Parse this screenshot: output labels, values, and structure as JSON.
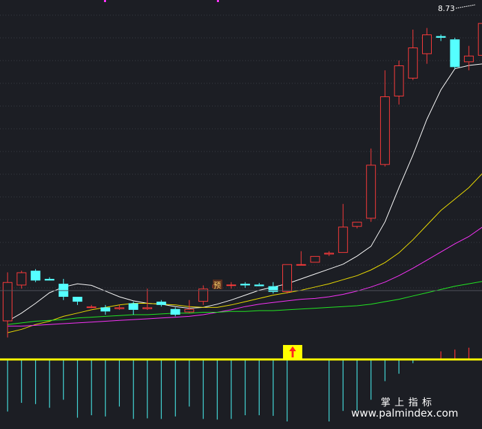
{
  "chart_data": {
    "type": "candlestick",
    "price_label": "8.73",
    "warning_glyph": "预",
    "candles": [
      {
        "o": 5.0,
        "h": 5.6,
        "l": 4.8,
        "c": 5.48
      },
      {
        "o": 5.44,
        "h": 5.62,
        "l": 5.4,
        "c": 5.6
      },
      {
        "o": 5.62,
        "h": 5.64,
        "l": 5.48,
        "c": 5.5
      },
      {
        "o": 5.52,
        "h": 5.54,
        "l": 5.5,
        "c": 5.5
      },
      {
        "o": 5.46,
        "h": 5.52,
        "l": 5.26,
        "c": 5.3
      },
      {
        "o": 5.3,
        "h": 5.3,
        "l": 5.2,
        "c": 5.24
      },
      {
        "o": 5.17,
        "h": 5.2,
        "l": 5.16,
        "c": 5.18
      },
      {
        "o": 5.17,
        "h": 5.2,
        "l": 5.08,
        "c": 5.12
      },
      {
        "o": 5.15,
        "h": 5.2,
        "l": 5.14,
        "c": 5.17
      },
      {
        "o": 5.22,
        "h": 5.24,
        "l": 5.08,
        "c": 5.14
      },
      {
        "o": 5.15,
        "h": 5.4,
        "l": 5.14,
        "c": 5.17
      },
      {
        "o": 5.24,
        "h": 5.26,
        "l": 5.18,
        "c": 5.2
      },
      {
        "o": 5.15,
        "h": 5.17,
        "l": 5.06,
        "c": 5.08
      },
      {
        "o": 5.11,
        "h": 5.26,
        "l": 5.1,
        "c": 5.15
      },
      {
        "o": 5.24,
        "h": 5.44,
        "l": 5.2,
        "c": 5.4
      },
      {
        "o": 5.41,
        "h": 5.46,
        "l": 5.4,
        "c": 5.45
      },
      {
        "o": 5.45,
        "h": 5.48,
        "l": 5.4,
        "c": 5.45
      },
      {
        "o": 5.46,
        "h": 5.48,
        "l": 5.41,
        "c": 5.44
      },
      {
        "o": 5.45,
        "h": 5.47,
        "l": 5.43,
        "c": 5.43
      },
      {
        "o": 5.43,
        "h": 5.48,
        "l": 5.34,
        "c": 5.36
      },
      {
        "o": 5.36,
        "h": 5.7,
        "l": 5.34,
        "c": 5.7
      },
      {
        "o": 5.7,
        "h": 5.86,
        "l": 5.7,
        "c": 5.7
      },
      {
        "o": 5.72,
        "h": 5.8,
        "l": 5.72,
        "c": 5.8
      },
      {
        "o": 5.82,
        "h": 5.86,
        "l": 5.8,
        "c": 5.84
      },
      {
        "o": 5.84,
        "h": 6.44,
        "l": 5.84,
        "c": 6.16
      },
      {
        "o": 6.16,
        "h": 6.22,
        "l": 6.14,
        "c": 6.22
      },
      {
        "o": 6.26,
        "h": 7.12,
        "l": 6.22,
        "c": 6.92
      },
      {
        "o": 6.92,
        "h": 8.08,
        "l": 6.9,
        "c": 7.76
      },
      {
        "o": 7.76,
        "h": 8.2,
        "l": 7.66,
        "c": 8.14
      },
      {
        "o": 7.98,
        "h": 8.58,
        "l": 7.96,
        "c": 8.36
      },
      {
        "o": 8.28,
        "h": 8.6,
        "l": 8.16,
        "c": 8.52
      },
      {
        "o": 8.5,
        "h": 8.52,
        "l": 8.44,
        "c": 8.48
      },
      {
        "o": 8.46,
        "h": 8.48,
        "l": 8.1,
        "c": 8.12
      },
      {
        "o": 8.18,
        "h": 8.38,
        "l": 8.08,
        "c": 8.26
      },
      {
        "o": 8.26,
        "h": 8.73,
        "l": 8.08,
        "c": 8.66
      }
    ],
    "ma_lines": [
      {
        "color": "#ffffff",
        "values": [
          5.0,
          5.1,
          5.22,
          5.35,
          5.42,
          5.46,
          5.44,
          5.37,
          5.3,
          5.25,
          5.22,
          5.21,
          5.18,
          5.16,
          5.17,
          5.21,
          5.26,
          5.32,
          5.38,
          5.42,
          5.46,
          5.52,
          5.58,
          5.64,
          5.7,
          5.8,
          5.92,
          6.22,
          6.64,
          7.04,
          7.48,
          7.84,
          8.1,
          8.14,
          8.16
        ]
      },
      {
        "color": "#f0e000",
        "values": [
          4.86,
          4.9,
          4.96,
          5.0,
          5.06,
          5.1,
          5.14,
          5.17,
          5.2,
          5.22,
          5.22,
          5.21,
          5.2,
          5.18,
          5.17,
          5.17,
          5.2,
          5.24,
          5.28,
          5.32,
          5.35,
          5.38,
          5.42,
          5.46,
          5.51,
          5.56,
          5.63,
          5.72,
          5.84,
          6.0,
          6.18,
          6.36,
          6.5,
          6.64,
          6.82
        ]
      },
      {
        "color": "#ff33ff",
        "values": [
          4.94,
          4.94,
          4.95,
          4.96,
          4.97,
          4.98,
          4.99,
          5.0,
          5.01,
          5.02,
          5.03,
          5.04,
          5.05,
          5.06,
          5.08,
          5.11,
          5.14,
          5.18,
          5.21,
          5.23,
          5.25,
          5.27,
          5.28,
          5.3,
          5.33,
          5.37,
          5.42,
          5.48,
          5.56,
          5.65,
          5.75,
          5.85,
          5.95,
          6.04,
          6.16
        ]
      },
      {
        "color": "#22ee22",
        "values": [
          4.96,
          4.98,
          5.0,
          5.01,
          5.02,
          5.04,
          5.05,
          5.06,
          5.07,
          5.08,
          5.08,
          5.09,
          5.1,
          5.1,
          5.11,
          5.11,
          5.12,
          5.12,
          5.13,
          5.13,
          5.14,
          5.15,
          5.16,
          5.17,
          5.18,
          5.19,
          5.21,
          5.24,
          5.27,
          5.31,
          5.35,
          5.39,
          5.43,
          5.46,
          5.49
        ]
      }
    ],
    "indicator": {
      "values": [
        -8.4,
        -7.0,
        -7.2,
        -7.8,
        -6.5,
        -9.4,
        -9.0,
        -9.2,
        -7.6,
        -9.6,
        -9.5,
        -9.6,
        -9.2,
        -7.6,
        -9.6,
        -9.7,
        -9.6,
        -9.0,
        -9.0,
        -9.1,
        -10.0,
        0,
        0,
        -10.0,
        -8.3,
        -8.3,
        -6.5,
        -3.5,
        -2.3,
        -0.6,
        0.1,
        1.3,
        1.6,
        1.9,
        2.4
      ],
      "signal_index": 20,
      "zero_color": "#ffff00",
      "positive_color": "#ff3333",
      "negative_color": "#44dddd"
    }
  },
  "watermark": {
    "cn": "掌上指标",
    "url": "www.palmindex.com"
  }
}
